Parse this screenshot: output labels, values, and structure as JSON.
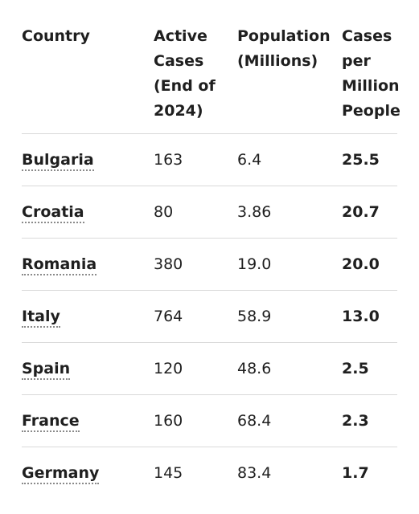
{
  "table": {
    "headers": {
      "country": "Country",
      "active_cases": "Active Cases (End of 2024)",
      "population": "Population (Millions)",
      "cases_per_million": "Cases per Million People"
    },
    "rows": [
      {
        "country": "Bulgaria",
        "active_cases": "163",
        "population": "6.4",
        "cases_per_million": "25.5"
      },
      {
        "country": "Croatia",
        "active_cases": "80",
        "population": "3.86",
        "cases_per_million": "20.7"
      },
      {
        "country": "Romania",
        "active_cases": "380",
        "population": "19.0",
        "cases_per_million": "20.0"
      },
      {
        "country": "Italy",
        "active_cases": "764",
        "population": "58.9",
        "cases_per_million": "13.0"
      },
      {
        "country": "Spain",
        "active_cases": "120",
        "population": "48.6",
        "cases_per_million": "2.5"
      },
      {
        "country": "France",
        "active_cases": "160",
        "population": "68.4",
        "cases_per_million": "2.3"
      },
      {
        "country": "Germany",
        "active_cases": "145",
        "population": "83.4",
        "cases_per_million": "1.7"
      }
    ]
  }
}
